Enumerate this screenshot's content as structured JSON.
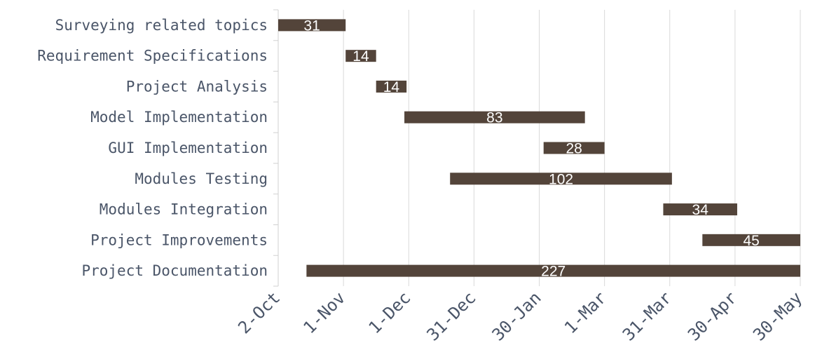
{
  "chart_data": {
    "type": "bar",
    "orientation": "horizontal-gantt",
    "title": "",
    "xlabel": "",
    "ylabel": "",
    "x_ticks": [
      "2-Oct",
      "1-Nov",
      "1-Dec",
      "31-Dec",
      "30-Jan",
      "1-Mar",
      "31-Mar",
      "30-Apr",
      "30-May"
    ],
    "grid": true,
    "legend": "none",
    "bar_color": "#53443a",
    "tasks": [
      {
        "name": "Surveying related topics",
        "start_day": 0,
        "duration": 31,
        "label": "31"
      },
      {
        "name": "Requirement Specifications",
        "start_day": 31,
        "duration": 14,
        "label": "14"
      },
      {
        "name": "Project Analysis",
        "start_day": 45,
        "duration": 14,
        "label": "14"
      },
      {
        "name": "Model Implementation",
        "start_day": 58,
        "duration": 83,
        "label": "83"
      },
      {
        "name": "GUI Implementation",
        "start_day": 122,
        "duration": 28,
        "label": "28"
      },
      {
        "name": "Modules Testing",
        "start_day": 79,
        "duration": 102,
        "label": "102"
      },
      {
        "name": "Modules Integration",
        "start_day": 177,
        "duration": 34,
        "label": "34"
      },
      {
        "name": "Project Improvements",
        "start_day": 195,
        "duration": 45,
        "label": "45"
      },
      {
        "name": "Project Documentation",
        "start_day": 13,
        "duration": 227,
        "label": "227"
      }
    ]
  }
}
